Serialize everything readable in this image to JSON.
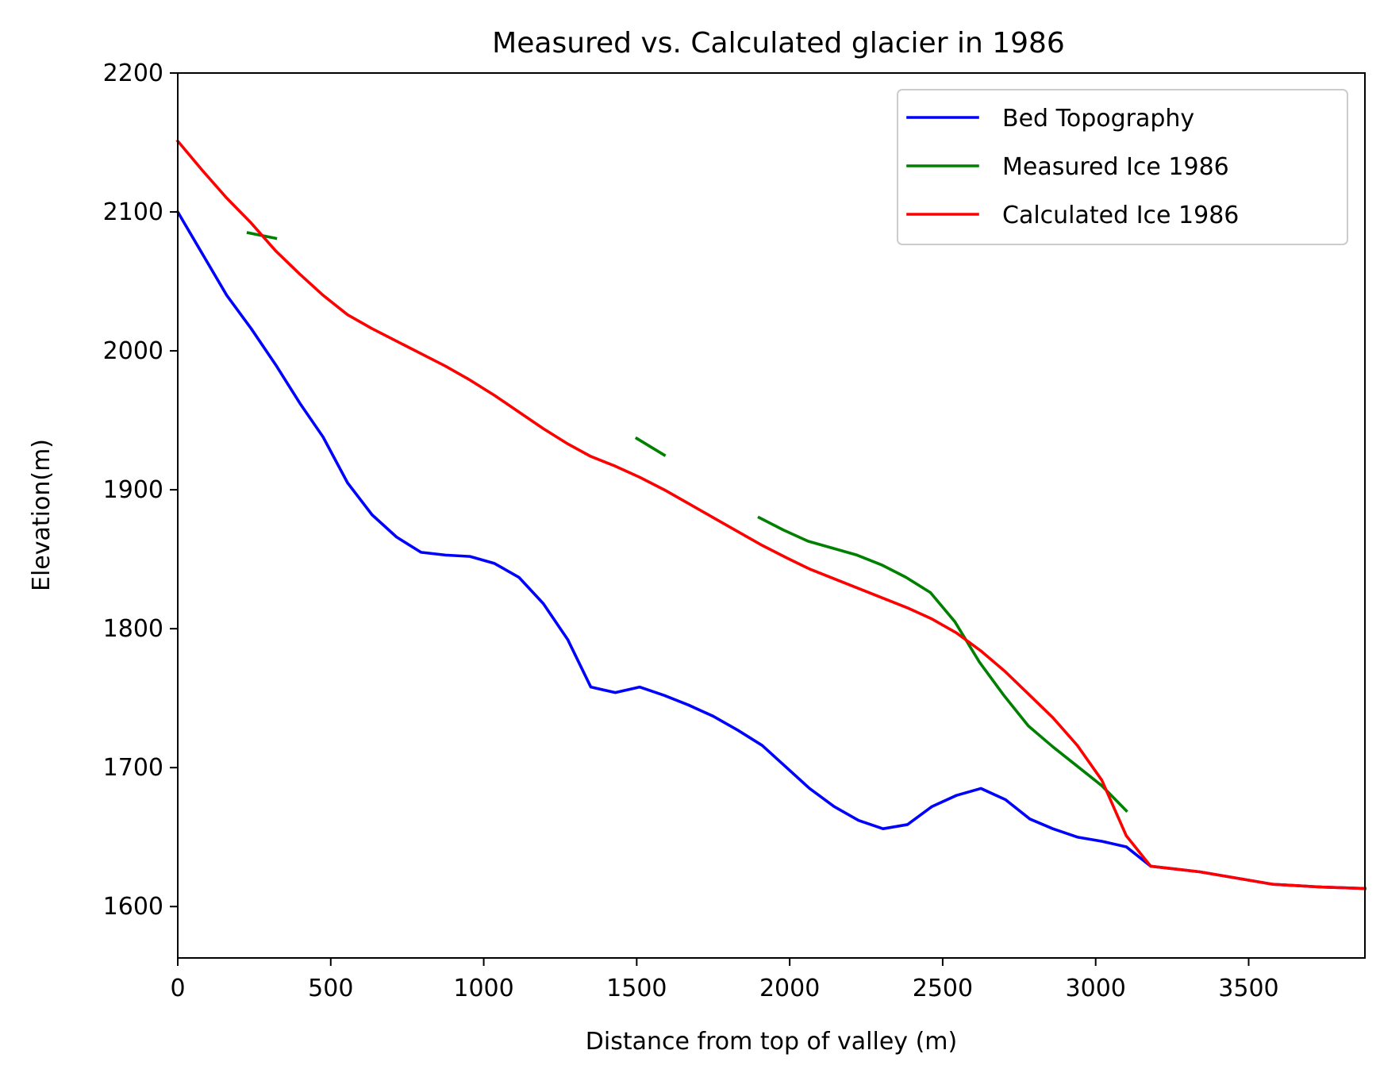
{
  "chart_data": {
    "type": "line",
    "title": "Measured vs. Calculated glacier in 1986",
    "xlabel": "Distance from top of valley (m)",
    "ylabel": "Elevation(m)",
    "xlim": [
      0,
      3880
    ],
    "ylim": [
      1563,
      2200
    ],
    "xticks": [
      0,
      500,
      1000,
      1500,
      2000,
      2500,
      3000,
      3500
    ],
    "yticks": [
      1600,
      1700,
      1800,
      1900,
      2000,
      2100,
      2200
    ],
    "grid": false,
    "legend_position": "upper right",
    "series": [
      {
        "name": "Bed Topography",
        "color": "#0000ff",
        "segments": [
          [
            [
              0,
              2100
            ],
            [
              80,
              2070
            ],
            [
              160,
              2040
            ],
            [
              240,
              2016
            ],
            [
              320,
              1990
            ],
            [
              400,
              1962
            ],
            [
              475,
              1938
            ],
            [
              555,
              1905
            ],
            [
              635,
              1882
            ],
            [
              715,
              1866
            ],
            [
              795,
              1855
            ],
            [
              875,
              1853
            ],
            [
              955,
              1852
            ],
            [
              1035,
              1847
            ],
            [
              1115,
              1837
            ],
            [
              1195,
              1818
            ],
            [
              1275,
              1792
            ],
            [
              1350,
              1758
            ],
            [
              1430,
              1754
            ],
            [
              1510,
              1758
            ],
            [
              1590,
              1752
            ],
            [
              1670,
              1745
            ],
            [
              1750,
              1737
            ],
            [
              1830,
              1727
            ],
            [
              1910,
              1716
            ],
            [
              1990,
              1700
            ],
            [
              2065,
              1685
            ],
            [
              2145,
              1672
            ],
            [
              2225,
              1662
            ],
            [
              2305,
              1656
            ],
            [
              2385,
              1659
            ],
            [
              2465,
              1672
            ],
            [
              2545,
              1680
            ],
            [
              2625,
              1685
            ],
            [
              2705,
              1677
            ],
            [
              2785,
              1663
            ],
            [
              2860,
              1656
            ],
            [
              2940,
              1650
            ],
            [
              3020,
              1647
            ],
            [
              3100,
              1643
            ],
            [
              3180,
              1629
            ],
            [
              3260,
              1627
            ],
            [
              3340,
              1625
            ],
            [
              3420,
              1622
            ],
            [
              3500,
              1619
            ],
            [
              3580,
              1616
            ],
            [
              3660,
              1615
            ],
            [
              3740,
              1614
            ],
            [
              3880,
              1613
            ]
          ]
        ]
      },
      {
        "name": "Measured Ice 1986",
        "color": "#008000",
        "segments": [
          [
            [
              230,
              2085
            ],
            [
              320,
              2081
            ]
          ],
          [
            [
              1500,
              1937
            ],
            [
              1590,
              1925
            ]
          ],
          [
            [
              1900,
              1880
            ],
            [
              1980,
              1871
            ],
            [
              2060,
              1863
            ],
            [
              2140,
              1858
            ],
            [
              2220,
              1853
            ],
            [
              2300,
              1846
            ],
            [
              2380,
              1837
            ],
            [
              2460,
              1826
            ],
            [
              2540,
              1805
            ],
            [
              2620,
              1776
            ],
            [
              2700,
              1752
            ],
            [
              2780,
              1730
            ],
            [
              2860,
              1715
            ],
            [
              2940,
              1701
            ],
            [
              3020,
              1687
            ],
            [
              3100,
              1669
            ]
          ]
        ]
      },
      {
        "name": "Calculated Ice 1986",
        "color": "#ff0000",
        "segments": [
          [
            [
              0,
              2151
            ],
            [
              80,
              2130
            ],
            [
              160,
              2110
            ],
            [
              240,
              2092
            ],
            [
              320,
              2072
            ],
            [
              400,
              2055
            ],
            [
              475,
              2040
            ],
            [
              555,
              2026
            ],
            [
              635,
              2016
            ],
            [
              715,
              2007
            ],
            [
              795,
              1998
            ],
            [
              875,
              1989
            ],
            [
              955,
              1979
            ],
            [
              1035,
              1968
            ],
            [
              1115,
              1956
            ],
            [
              1195,
              1944
            ],
            [
              1275,
              1933
            ],
            [
              1350,
              1924
            ],
            [
              1430,
              1917
            ],
            [
              1510,
              1909
            ],
            [
              1590,
              1900
            ],
            [
              1670,
              1890
            ],
            [
              1750,
              1880
            ],
            [
              1830,
              1870
            ],
            [
              1910,
              1860
            ],
            [
              1990,
              1851
            ],
            [
              2065,
              1843
            ],
            [
              2145,
              1836
            ],
            [
              2225,
              1829
            ],
            [
              2305,
              1822
            ],
            [
              2385,
              1815
            ],
            [
              2465,
              1807
            ],
            [
              2545,
              1797
            ],
            [
              2625,
              1784
            ],
            [
              2705,
              1769
            ],
            [
              2785,
              1752
            ],
            [
              2860,
              1736
            ],
            [
              2940,
              1716
            ],
            [
              3020,
              1691
            ],
            [
              3100,
              1651
            ],
            [
              3180,
              1629
            ],
            [
              3260,
              1627
            ],
            [
              3340,
              1625
            ],
            [
              3420,
              1622
            ],
            [
              3500,
              1619
            ],
            [
              3580,
              1616
            ],
            [
              3660,
              1615
            ],
            [
              3740,
              1614
            ],
            [
              3880,
              1613
            ]
          ]
        ]
      }
    ]
  }
}
